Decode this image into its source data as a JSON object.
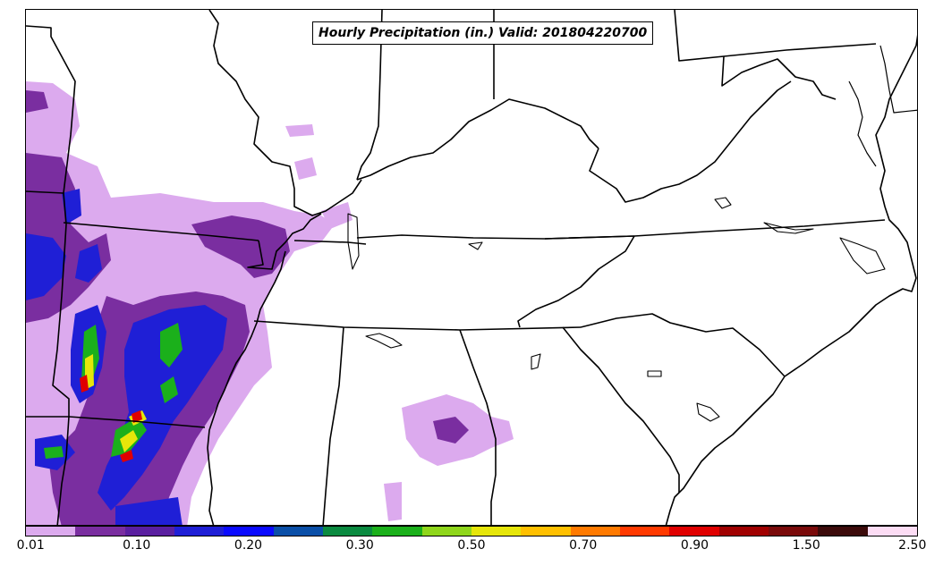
{
  "title": "Hourly Precipitation (in.) Valid: 201804220700",
  "colorbar": {
    "colors": [
      "#dcaaee",
      "#7a2ea0",
      "#5a1fa0",
      "#1f1fd6",
      "#0a0aff",
      "#0a4fa8",
      "#0a8a40",
      "#1bb01b",
      "#8fd61b",
      "#e6e60a",
      "#ffc000",
      "#ff7a00",
      "#ff3a00",
      "#e00000",
      "#a00000",
      "#7a0a0a",
      "#3c0a0a",
      "#fcdcf4"
    ],
    "tick_labels": [
      "0.01",
      "0.10",
      "0.20",
      "0.30",
      "0.50",
      "0.70",
      "0.90",
      "1.50",
      "2.50"
    ]
  },
  "precip_colors": {
    "light": "#dcaaee",
    "mid": "#7a2ea0",
    "blue": "#1f1fd6",
    "green": "#1bb01b",
    "yellow": "#e6e60a",
    "red": "#e00000"
  }
}
